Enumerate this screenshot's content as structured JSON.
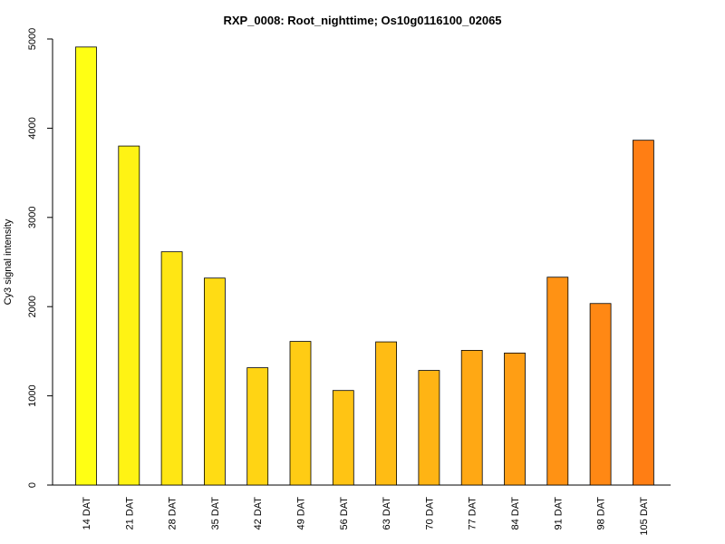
{
  "chart_data": {
    "type": "bar",
    "title": "RXP_0008: Root_nighttime; Os10g0116100_02065",
    "xlabel": "",
    "ylabel": "Cy3 signal intensity",
    "ylim": [
      0,
      5000
    ],
    "yticks": [
      0,
      1000,
      2000,
      3000,
      4000,
      5000
    ],
    "categories": [
      "14 DAT",
      "21 DAT",
      "28 DAT",
      "35 DAT",
      "42 DAT",
      "49 DAT",
      "56 DAT",
      "63 DAT",
      "70 DAT",
      "77 DAT",
      "84 DAT",
      "91 DAT",
      "98 DAT",
      "105 DAT"
    ],
    "values": [
      4910,
      3800,
      2615,
      2320,
      1315,
      1610,
      1060,
      1605,
      1285,
      1510,
      1480,
      2330,
      2035,
      3865
    ],
    "colors": [
      "#FFFF14",
      "#FFF314",
      "#FFE614",
      "#FFDC14",
      "#FFD414",
      "#FFCC14",
      "#FFC414",
      "#FFBC14",
      "#FFB414",
      "#FFA814",
      "#FF9E14",
      "#FF9214",
      "#FF8814",
      "#FF7E14"
    ],
    "grid": false,
    "legend": "none"
  }
}
